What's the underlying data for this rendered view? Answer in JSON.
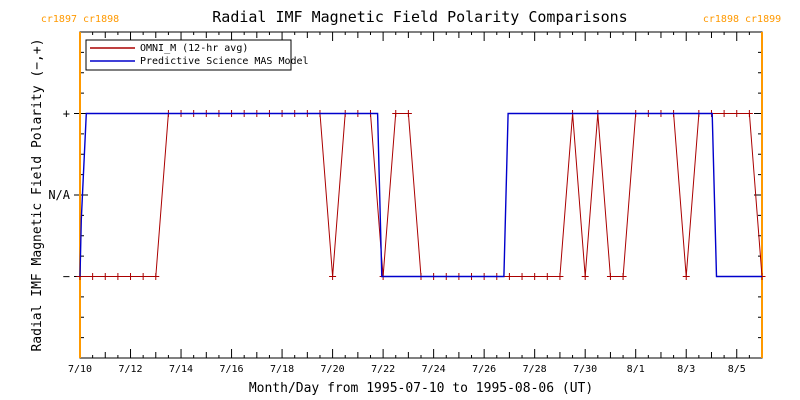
{
  "chart_data": {
    "type": "line",
    "title": "Radial IMF Magnetic Field Polarity Comparisons",
    "xlabel": "Month/Day from 1995-07-10 to 1995-08-06 (UT)",
    "ylabel": "Radial IMF Magnetic Field Polarity (−,+)",
    "x_range": [
      "1995-07-10",
      "1995-08-06"
    ],
    "y_categories": [
      "−",
      "N/A",
      "+"
    ],
    "y_values": [
      -1,
      0,
      1
    ],
    "ylim": [
      -2,
      2
    ],
    "x_tick_labels": [
      "7/10",
      "7/12",
      "7/14",
      "7/16",
      "7/18",
      "7/20",
      "7/22",
      "7/24",
      "7/26",
      "7/28",
      "7/30",
      "8/1",
      "8/3",
      "8/5"
    ],
    "carrington_markers": [
      {
        "label": "cr1897 cr1898",
        "x": 0.0,
        "side": "left"
      },
      {
        "label": "cr1898 cr1899",
        "x": 27.0,
        "side": "right"
      }
    ],
    "legend": {
      "placement": "top-left"
    },
    "colors": {
      "omni": "#aa0000",
      "mas": "#0000cc",
      "carrington": "#ff9900"
    },
    "series": [
      {
        "name": "OMNI_M (12-hr avg)",
        "color": "#aa0000",
        "x_days": [
          0,
          0.5,
          1,
          1.5,
          2,
          2.5,
          3,
          3.5,
          4,
          4.5,
          5,
          5.5,
          6,
          6.5,
          7,
          7.5,
          8,
          8.5,
          9,
          9.5,
          10,
          10.5,
          11,
          11.5,
          12,
          12.5,
          13,
          13.5,
          14,
          14.5,
          15,
          15.5,
          16,
          16.5,
          17,
          17.5,
          18,
          18.5,
          19,
          19.5,
          20,
          20.5,
          21,
          21.5,
          22,
          22.5,
          23,
          23.5,
          24,
          24.5,
          25,
          25.5,
          26,
          26.5,
          27
        ],
        "values": [
          -1,
          -1,
          -1,
          -1,
          -1,
          -1,
          -1,
          1,
          1,
          1,
          1,
          1,
          1,
          1,
          1,
          1,
          1,
          1,
          1,
          1,
          -1,
          1,
          1,
          1,
          -1,
          1,
          1,
          -1,
          -1,
          -1,
          -1,
          -1,
          -1,
          -1,
          -1,
          -1,
          -1,
          -1,
          -1,
          1,
          -1,
          1,
          -1,
          -1,
          1,
          1,
          1,
          1,
          -1,
          1,
          1,
          1,
          1,
          1,
          -1
        ]
      },
      {
        "name": "Predictive Science MAS Model",
        "color": "#0000cc",
        "x_days": [
          0,
          0.05,
          0.25,
          11.78,
          11.95,
          16.78,
          16.95,
          25.03,
          25.2,
          27
        ],
        "values": [
          -1,
          -0.3,
          1,
          1,
          -1,
          -1,
          1,
          1,
          -1,
          -1
        ]
      }
    ]
  }
}
